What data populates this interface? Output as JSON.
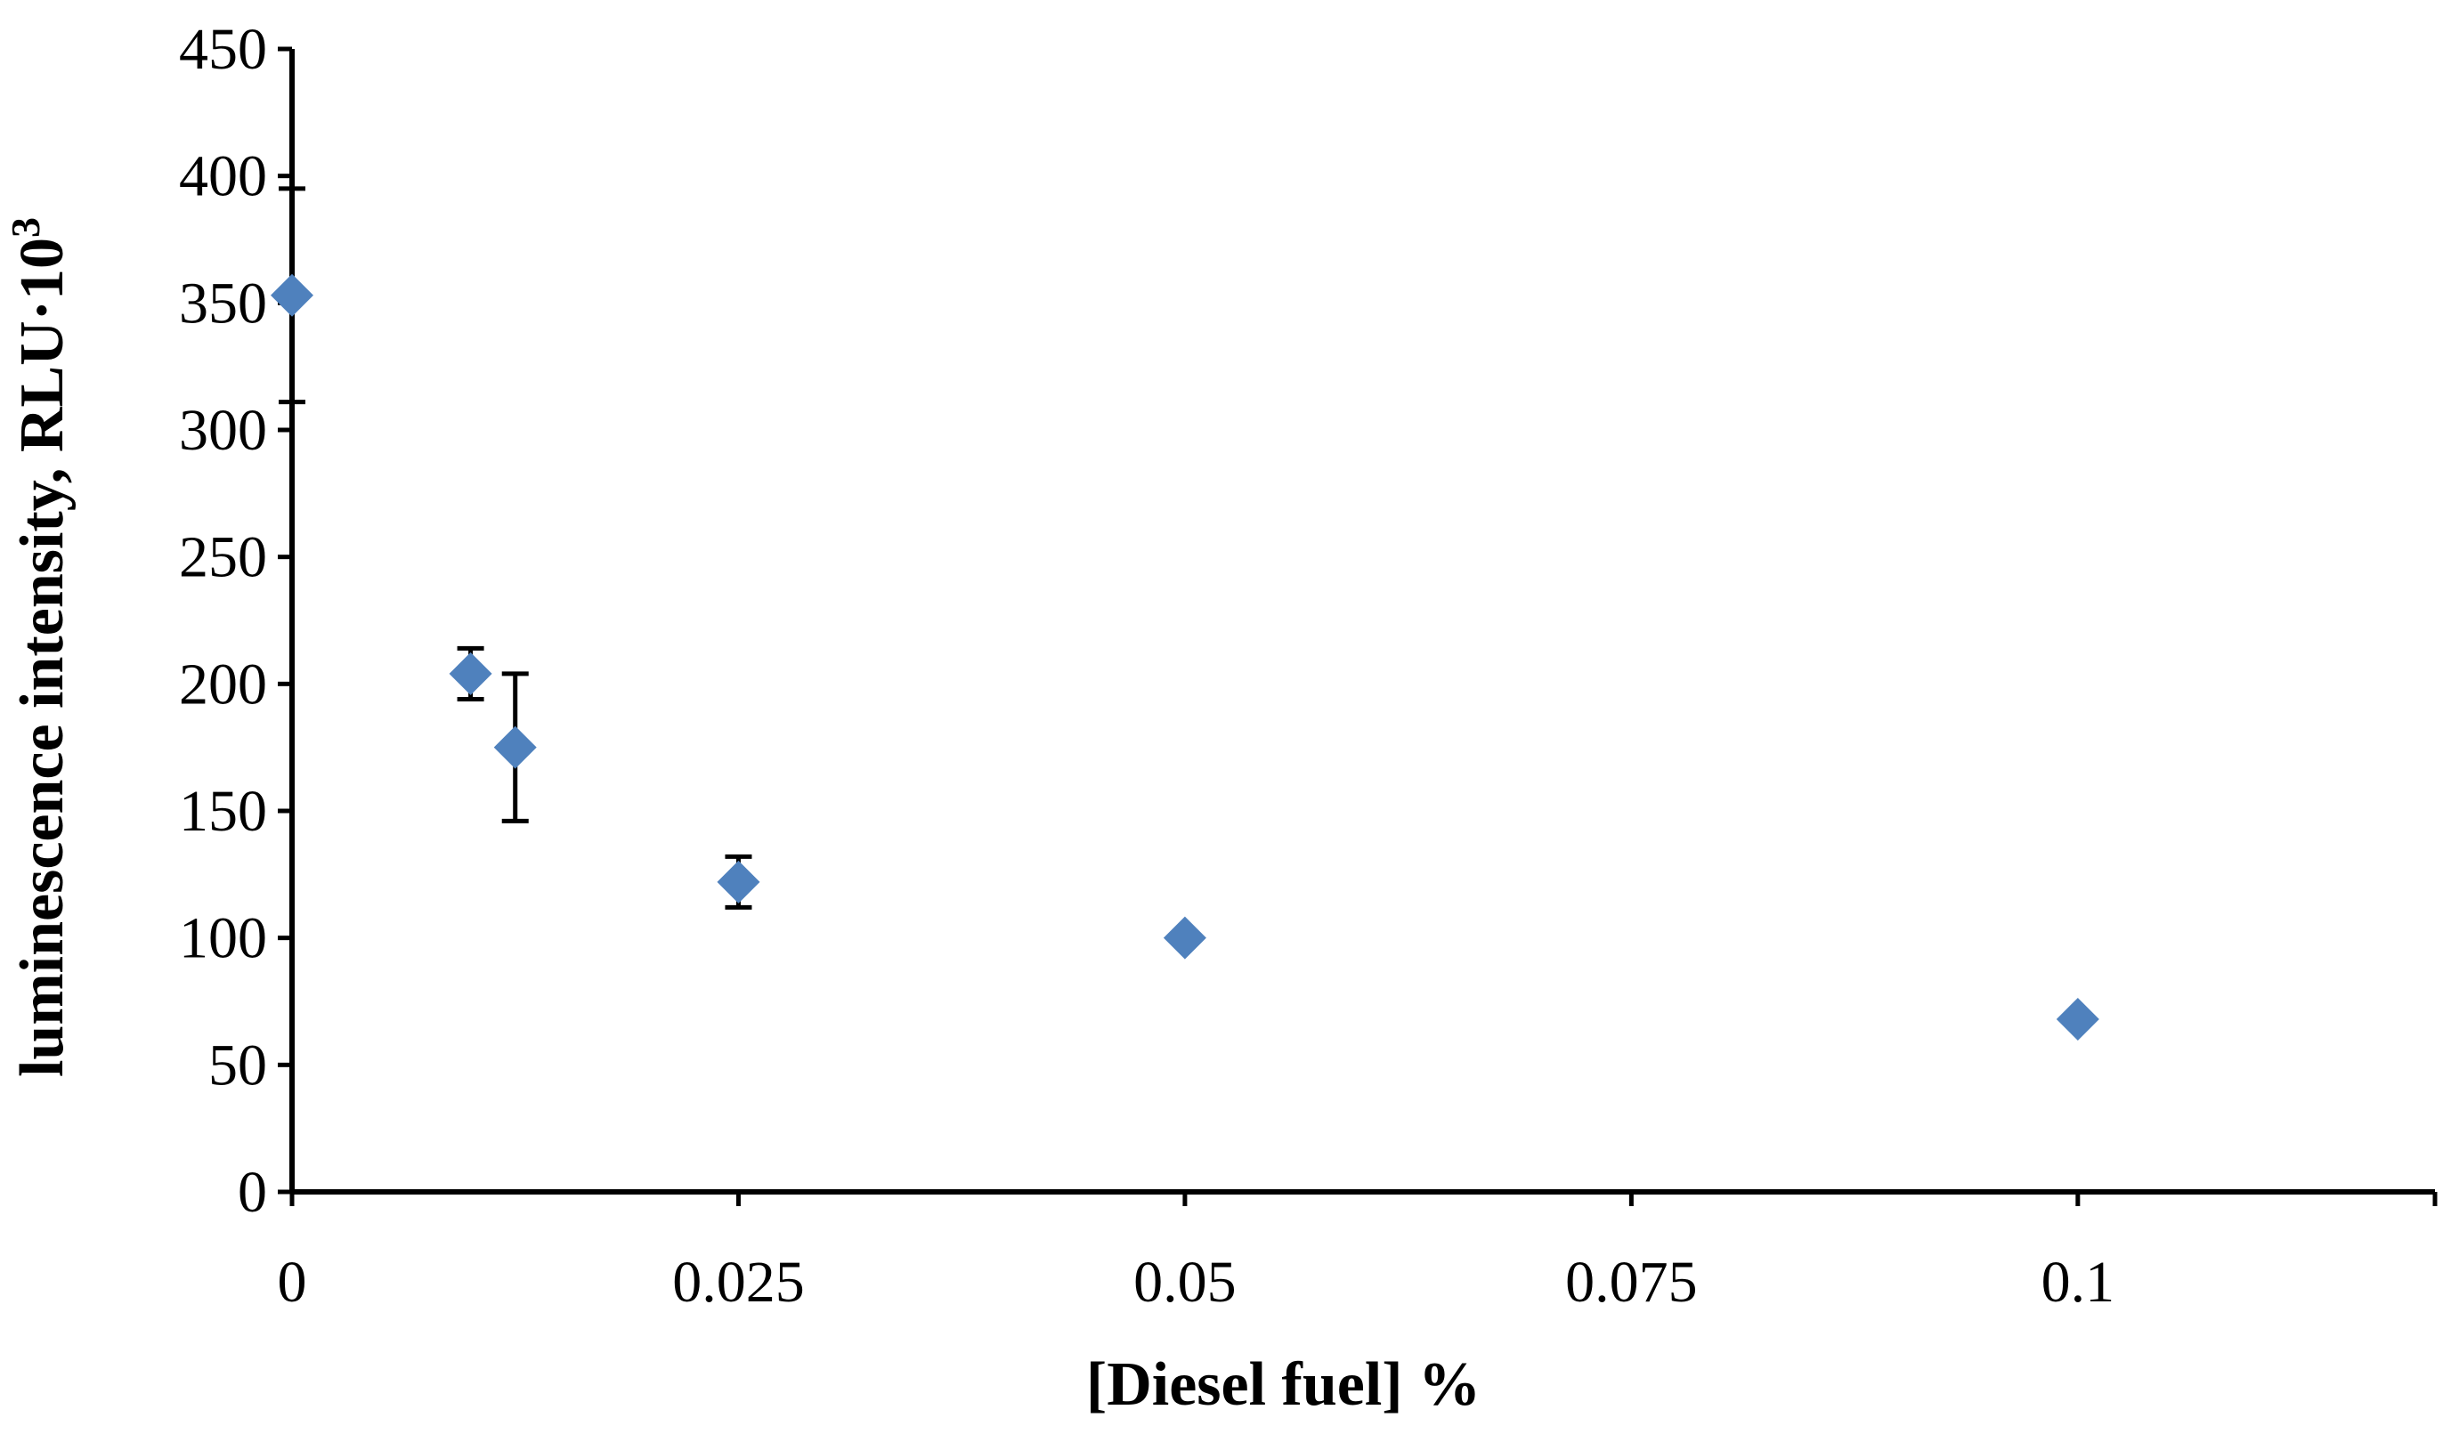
{
  "chart_data": {
    "type": "scatter",
    "title": "",
    "xlabel": "[Diesel fuel] %",
    "ylabel_main": "luminescence intensity, RLU·10",
    "ylabel_sup": "3",
    "xlim": [
      0,
      0.12
    ],
    "ylim": [
      0,
      450
    ],
    "xticks": [
      0,
      0.025,
      0.05,
      0.075,
      0.1
    ],
    "xtick_labels": [
      "0",
      "0.025",
      "0.05",
      "0.075",
      "0.1"
    ],
    "yticks": [
      0,
      50,
      100,
      150,
      200,
      250,
      300,
      350,
      400,
      450
    ],
    "ytick_labels": [
      "0",
      "50",
      "100",
      "150",
      "200",
      "250",
      "300",
      "350",
      "400",
      "450"
    ],
    "grid": false,
    "legend": "none",
    "marker": "diamond",
    "marker_color": "#4F81BD",
    "points": [
      {
        "x": 0,
        "y": 353,
        "err": 42
      },
      {
        "x": 0.01,
        "y": 204,
        "err": 10
      },
      {
        "x": 0.0125,
        "y": 175,
        "err": 29
      },
      {
        "x": 0.025,
        "y": 122,
        "err": 10
      },
      {
        "x": 0.05,
        "y": 100,
        "err": 0
      },
      {
        "x": 0.1,
        "y": 68,
        "err": 0
      }
    ]
  }
}
